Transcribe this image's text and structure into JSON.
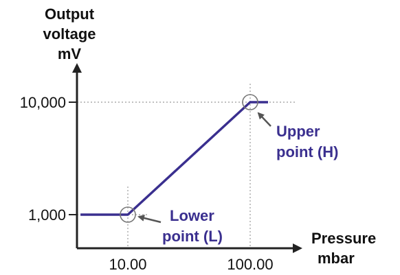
{
  "chart_data": {
    "type": "line",
    "title": "",
    "ylabel": [
      "Output",
      "voltage",
      "mV"
    ],
    "xlabel": [
      "Pressure",
      "mbar"
    ],
    "x_scale": "log",
    "y_scale": "log",
    "x_ticks": [
      {
        "value": 10,
        "label": "10.00"
      },
      {
        "value": 100,
        "label": "100.00"
      }
    ],
    "y_ticks": [
      {
        "value": 1000,
        "label": "1,000"
      },
      {
        "value": 10000,
        "label": "10,000"
      }
    ],
    "xlim": [
      4.1,
      140
    ],
    "ylim": [
      900,
      13000
    ],
    "grid": "dotted reference lines at tick values",
    "series": [
      {
        "color": "#3a2f8f",
        "points": [
          {
            "x": 4.1,
            "y": 1000
          },
          {
            "x": 10,
            "y": 1000
          },
          {
            "x": 100,
            "y": 10000
          },
          {
            "x": 140,
            "y": 10000
          }
        ]
      }
    ],
    "annotations": [
      {
        "label": [
          "Lower",
          "point (L)"
        ],
        "x": 10,
        "y": 1000,
        "color": "#3a2f8f"
      },
      {
        "label": [
          "Upper",
          "point (H)"
        ],
        "x": 100,
        "y": 10000,
        "color": "#3a2f8f"
      }
    ]
  }
}
